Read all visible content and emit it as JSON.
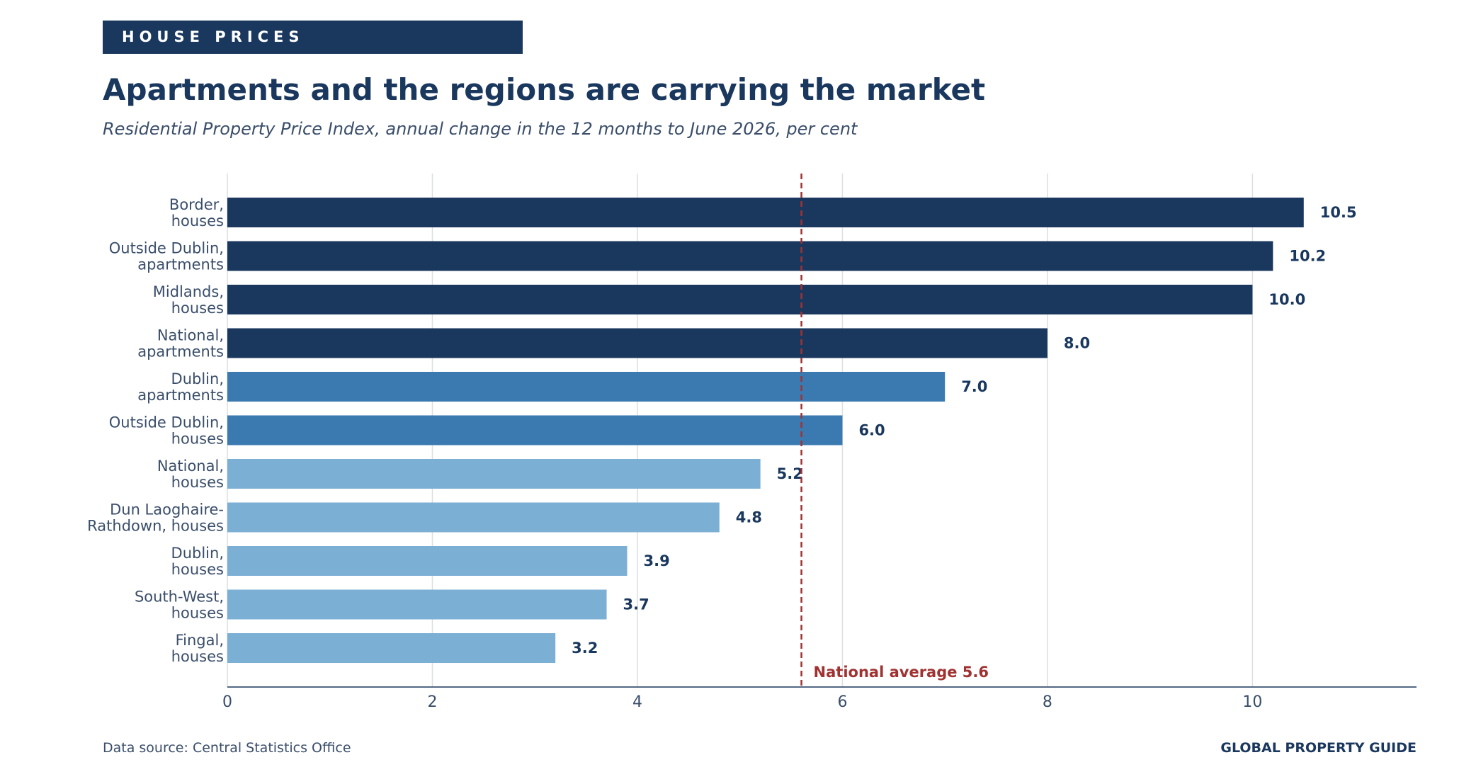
{
  "header": {
    "kicker": "HOUSE PRICES",
    "title": "Apartments and the regions are carrying the market",
    "subtitle": "Residential Property Price Index, annual change in the 12 months to June 2026, per cent"
  },
  "footer": {
    "source": "Data source: Central Statistics Office",
    "brand": "GLOBAL PROPERTY GUIDE"
  },
  "colors": {
    "dark": "#1a375e",
    "medium": "#3a7ab0",
    "light": "#7bafd4",
    "reference": "#a03232",
    "grid": "#dcdfe3",
    "axis": "#1a375e"
  },
  "chart_data": {
    "type": "bar",
    "orientation": "horizontal",
    "categories": [
      [
        "Border,",
        "houses"
      ],
      [
        "Outside Dublin,",
        "apartments"
      ],
      [
        "Midlands,",
        "houses"
      ],
      [
        "National,",
        "apartments"
      ],
      [
        "Dublin,",
        "apartments"
      ],
      [
        "Outside Dublin,",
        "houses"
      ],
      [
        "National,",
        "houses"
      ],
      [
        "Dun Laoghaire-",
        "Rathdown, houses"
      ],
      [
        "Dublin,",
        "houses"
      ],
      [
        "South-West,",
        "houses"
      ],
      [
        "Fingal,",
        "houses"
      ]
    ],
    "values": [
      10.5,
      10.2,
      10.0,
      8.0,
      7.0,
      6.0,
      5.2,
      4.8,
      3.9,
      3.7,
      3.2
    ],
    "value_labels": [
      "10.5",
      "10.2",
      "10.0",
      "8.0",
      "7.0",
      "6.0",
      "5.2",
      "4.8",
      "3.9",
      "3.7",
      "3.2"
    ],
    "bar_colors": [
      "dark",
      "dark",
      "dark",
      "dark",
      "medium",
      "medium",
      "light",
      "light",
      "light",
      "light",
      "light"
    ],
    "xlim": [
      0,
      11.6
    ],
    "xticks": [
      0,
      2,
      4,
      6,
      8,
      10
    ],
    "xtick_labels": [
      "0",
      "2",
      "4",
      "6",
      "8",
      "10"
    ],
    "grid": "vertical",
    "reference_line": {
      "value": 5.6,
      "label": "National average 5.6",
      "style": "dashed"
    }
  }
}
